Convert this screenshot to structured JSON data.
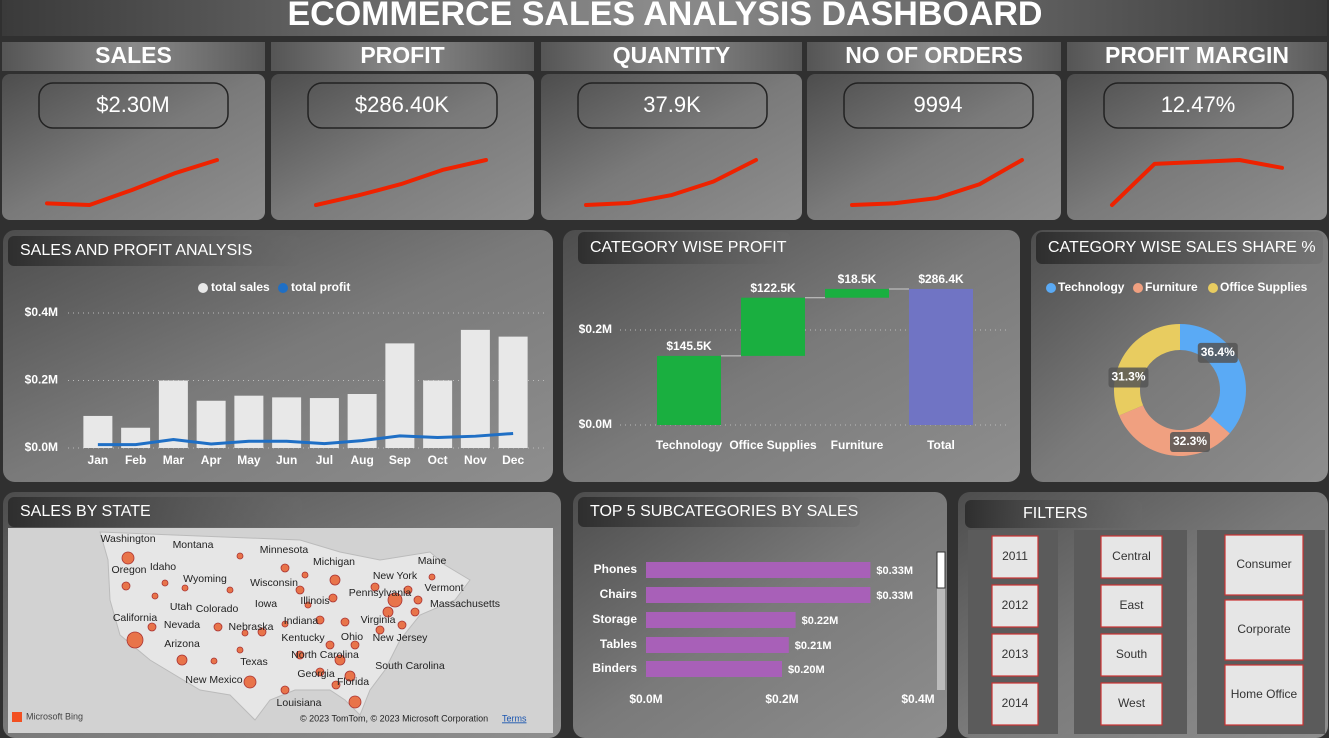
{
  "title": "ECOMMERCE SALES ANALYSIS DASHBOARD",
  "kpis": [
    {
      "label": "SALES",
      "value": "$2.30M",
      "trend": [
        10,
        9,
        18,
        28,
        36
      ]
    },
    {
      "label": "PROFIT",
      "value": "$286.40K",
      "trend": [
        8,
        14,
        21,
        30,
        36
      ]
    },
    {
      "label": "QUANTITY",
      "value": "37.9K",
      "trend": [
        10,
        11,
        15,
        22,
        33
      ]
    },
    {
      "label": "NO OF ORDERS",
      "value": "9994",
      "trend": [
        10,
        11,
        14,
        22,
        36
      ]
    },
    {
      "label": "PROFIT MARGIN",
      "value": "12.47%",
      "trend": [
        5,
        26,
        27,
        28,
        24
      ]
    }
  ],
  "chart_data": [
    {
      "type": "combo",
      "title": "SALES AND PROFIT ANALYSIS",
      "categories": [
        "Jan",
        "Feb",
        "Mar",
        "Apr",
        "May",
        "Jun",
        "Jul",
        "Aug",
        "Sep",
        "Oct",
        "Nov",
        "Dec"
      ],
      "series": [
        {
          "name": "total sales",
          "color": "#e8e8e8",
          "kind": "bar",
          "values": [
            0.095,
            0.06,
            0.2,
            0.14,
            0.155,
            0.15,
            0.148,
            0.16,
            0.31,
            0.2,
            0.35,
            0.33
          ]
        },
        {
          "name": "total profit",
          "color": "#1f6fc5",
          "kind": "line",
          "values": [
            0.01,
            0.01,
            0.025,
            0.012,
            0.02,
            0.02,
            0.013,
            0.022,
            0.036,
            0.031,
            0.035,
            0.043
          ]
        }
      ],
      "ylim": [
        0,
        0.44
      ],
      "yticks": [
        {
          "value": 0,
          "label": "$0.0M"
        },
        {
          "value": 0.2,
          "label": "$0.2M"
        },
        {
          "value": 0.4,
          "label": "$0.4M"
        }
      ],
      "grid": true,
      "legend": "top"
    },
    {
      "type": "waterfall",
      "title": "CATEGORY WISE PROFIT",
      "categories": [
        "Technology",
        "Office Supplies",
        "Furniture",
        "Total"
      ],
      "values": [
        0.1455,
        0.1225,
        0.0185,
        0.2864
      ],
      "value_labels": [
        "$145.5K",
        "$122.5K",
        "$18.5K",
        "$286.4K"
      ],
      "totals": [
        false,
        false,
        false,
        true
      ],
      "color": "#1aaf40",
      "total_color": "#7074c4",
      "ylim": [
        0,
        0.3
      ],
      "yticks": [
        {
          "value": 0,
          "label": "$0.0M"
        },
        {
          "value": 0.2,
          "label": "$0.2M"
        }
      ],
      "grid": true
    },
    {
      "type": "donut",
      "title": "CATEGORY WISE SALES SHARE %",
      "categories": [
        "Technology",
        "Furniture",
        "Office Supplies"
      ],
      "values": [
        36.4,
        32.3,
        31.3
      ],
      "value_labels": [
        "36.4%",
        "32.3%",
        "31.3%"
      ],
      "colors": [
        "#5aaaf5",
        "#f0a080",
        "#e8cc60"
      ],
      "legend": "top"
    },
    {
      "type": "map",
      "title": "SALES BY STATE",
      "states": [
        "Washington",
        "Montana",
        "Minnesota",
        "Michigan",
        "Maine",
        "Oregon",
        "Idaho",
        "Wyoming",
        "Wisconsin",
        "New York",
        "Vermont",
        "Pennsylvania",
        "Massachusetts",
        "Utah",
        "Colorado",
        "Iowa",
        "Illinois",
        "California",
        "Nevada",
        "Nebraska",
        "Indiana",
        "Virginia",
        "Kentucky",
        "Ohio",
        "New Jersey",
        "Arizona",
        "North Carolina",
        "Texas",
        "South Carolina",
        "Georgia",
        "New Mexico",
        "Florida",
        "Louisiana"
      ],
      "brand": "Microsoft Bing",
      "copyright": "© 2023 TomTom, © 2023 Microsoft Corporation",
      "terms": "Terms"
    },
    {
      "type": "hbar",
      "title": "TOP 5 SUBCATEGORIES BY SALES",
      "categories": [
        "Phones",
        "Chairs",
        "Storage",
        "Tables",
        "Binders"
      ],
      "values": [
        0.33,
        0.33,
        0.22,
        0.21,
        0.2
      ],
      "value_labels": [
        "$0.33M",
        "$0.33M",
        "$0.22M",
        "$0.21M",
        "$0.20M"
      ],
      "color": "#a860b8",
      "xlim": [
        0,
        0.4
      ],
      "xticks": [
        {
          "value": 0,
          "label": "$0.0M"
        },
        {
          "value": 0.2,
          "label": "$0.2M"
        },
        {
          "value": 0.4,
          "label": "$0.4M"
        }
      ]
    }
  ],
  "filters": {
    "title": "FILTERS",
    "years": [
      2011,
      2012,
      2013,
      2014
    ],
    "regions": [
      "Central",
      "East",
      "South",
      "West"
    ],
    "segments": [
      "Consumer",
      "Corporate",
      "Home Office"
    ]
  }
}
